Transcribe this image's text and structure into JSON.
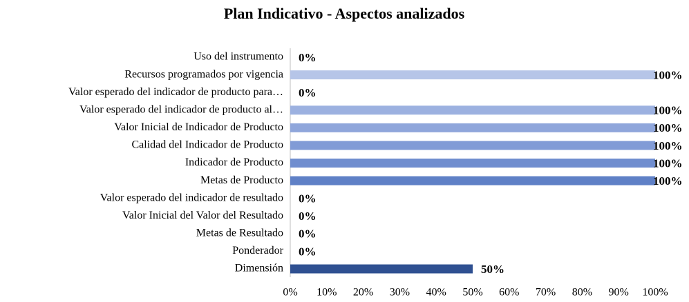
{
  "chart_data": {
    "type": "bar",
    "orientation": "horizontal",
    "title": "Plan Indicativo - Aspectos analizados",
    "categories": [
      "Uso del instrumento",
      "Recursos programados por vigencia",
      "Valor esperado del indicador de producto para…",
      "Valor esperado del indicador de producto al…",
      "Valor Inicial de Indicador de Producto",
      "Calidad del Indicador de Producto",
      "Indicador de Producto",
      "Metas de Producto",
      "Valor esperado del indicador de resultado",
      "Valor Inicial del Valor del Resultado",
      "Metas de Resultado",
      "Ponderador",
      "Dimensión"
    ],
    "values": [
      0,
      100,
      0,
      100,
      100,
      100,
      100,
      100,
      0,
      0,
      0,
      0,
      50
    ],
    "value_labels": [
      "0%",
      "100%",
      "0%",
      "100%",
      "100%",
      "100%",
      "100%",
      "100%",
      "0%",
      "0%",
      "0%",
      "0%",
      "50%"
    ],
    "colors": [
      "#c3cfec",
      "#b6c5e8",
      "#a9bbe4",
      "#9cb1e0",
      "#8fa6db",
      "#819bd6",
      "#6f8dcf",
      "#5f80c6",
      "#5576bb",
      "#4b6cb0",
      "#4262a5",
      "#3a599b",
      "#2f5091"
    ],
    "xlim": [
      0,
      100
    ],
    "xticks": [
      {
        "value": 0,
        "label": "0%"
      },
      {
        "value": 10,
        "label": "10%"
      },
      {
        "value": 20,
        "label": "20%"
      },
      {
        "value": 30,
        "label": "30%"
      },
      {
        "value": 40,
        "label": "40%"
      },
      {
        "value": 50,
        "label": "50%"
      },
      {
        "value": 60,
        "label": "60%"
      },
      {
        "value": 70,
        "label": "70%"
      },
      {
        "value": 80,
        "label": "80%"
      },
      {
        "value": 90,
        "label": "90%"
      },
      {
        "value": 100,
        "label": "100%"
      }
    ]
  }
}
